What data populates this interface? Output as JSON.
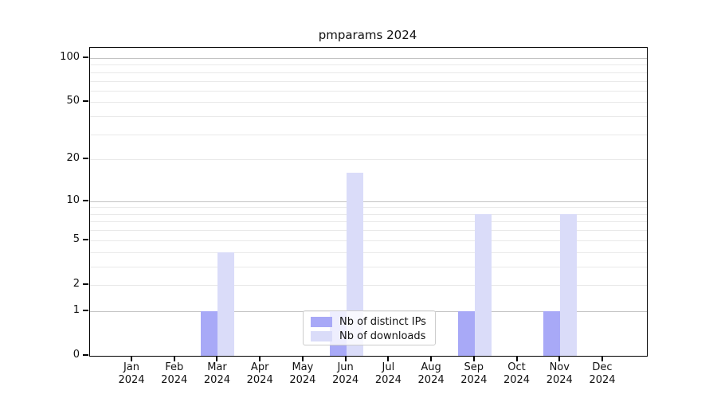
{
  "title": "pmparams 2024",
  "chart_data": {
    "type": "bar",
    "title": "pmparams 2024",
    "x_categories": [
      "Jan",
      "Feb",
      "Mar",
      "Apr",
      "May",
      "Jun",
      "Jul",
      "Aug",
      "Sep",
      "Oct",
      "Nov",
      "Dec"
    ],
    "x_year": "2024",
    "series": [
      {
        "name": "Nb of distinct IPs",
        "color": "#a8a9f7",
        "values": [
          0,
          0,
          1,
          0,
          0,
          1,
          0,
          0,
          1,
          0,
          1,
          0
        ]
      },
      {
        "name": "Nb of downloads",
        "color": "#dadcf9",
        "values": [
          0,
          0,
          4,
          0,
          0,
          16,
          0,
          0,
          8,
          0,
          8,
          0
        ]
      }
    ],
    "y_scale": "log1p",
    "ylim": [
      0,
      118
    ],
    "y_ticks": [
      0,
      1,
      2,
      5,
      10,
      20,
      50,
      100
    ],
    "y_tick_labels": [
      "0",
      "1",
      "2",
      "5",
      "10",
      "20",
      "50",
      "100"
    ],
    "y_major_gridlines": [
      1,
      10,
      100
    ],
    "y_minor_gridlines": [
      2,
      3,
      4,
      5,
      6,
      7,
      8,
      9,
      20,
      30,
      40,
      50,
      60,
      70,
      80,
      90
    ],
    "grid": true,
    "legend_position": "lower center"
  },
  "colors": {
    "distinct_ips_bar": "#a8a9f7",
    "downloads_bar": "#dadcf9",
    "major_grid": "#c3c3c3",
    "minor_grid": "#e9e9e9",
    "axis": "#000000",
    "legend_border": "#cccccc"
  }
}
